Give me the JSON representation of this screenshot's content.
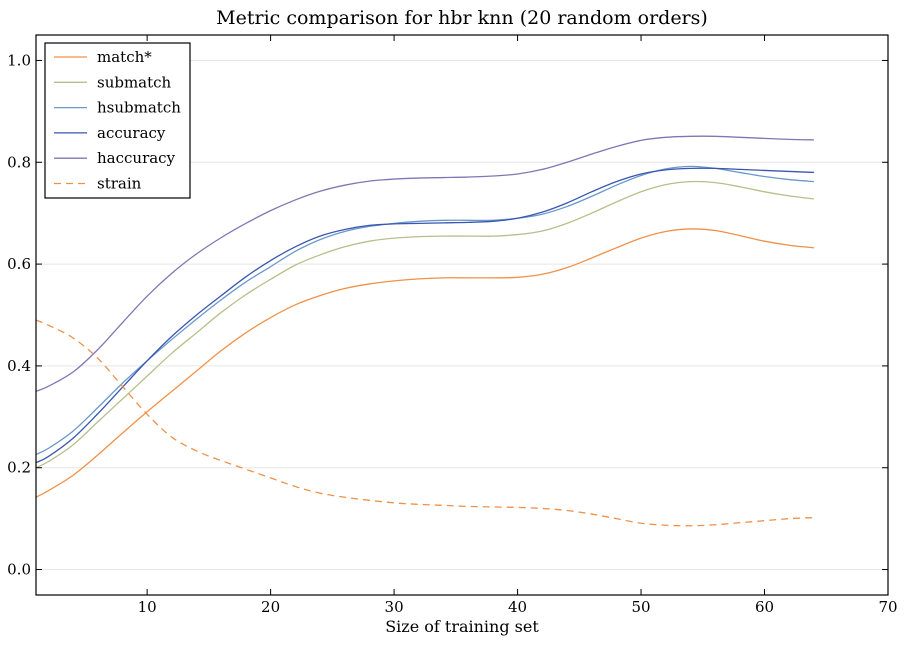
{
  "chart_data": {
    "type": "line",
    "title": "Metric comparison for hbr knn (20 random orders)",
    "xlabel": "Size of training set",
    "ylabel": "",
    "xlim": [
      1,
      70
    ],
    "ylim": [
      -0.05,
      1.05
    ],
    "xticks": [
      10,
      20,
      30,
      40,
      50,
      60,
      70
    ],
    "yticks": [
      0.0,
      0.2,
      0.4,
      0.6,
      0.8,
      1.0
    ],
    "xtick_labels": [
      "10",
      "20",
      "30",
      "40",
      "50",
      "60",
      "70"
    ],
    "ytick_labels": [
      "0.0",
      "0.2",
      "0.4",
      "0.6",
      "0.8",
      "1.0"
    ],
    "grid": true,
    "legend_position": "top-left",
    "x": [
      1,
      2,
      4,
      6,
      8,
      10,
      12,
      14,
      16,
      18,
      20,
      22,
      24,
      26,
      28,
      30,
      32,
      34,
      36,
      38,
      40,
      42,
      44,
      46,
      48,
      50,
      52,
      54,
      56,
      58,
      60,
      62,
      64
    ],
    "series": [
      {
        "name": "match*",
        "color": "#f0914a",
        "dash": "solid",
        "values": [
          0.142,
          0.155,
          0.185,
          0.225,
          0.268,
          0.31,
          0.35,
          0.39,
          0.43,
          0.465,
          0.495,
          0.52,
          0.538,
          0.552,
          0.561,
          0.567,
          0.571,
          0.573,
          0.573,
          0.573,
          0.574,
          0.58,
          0.593,
          0.612,
          0.632,
          0.651,
          0.664,
          0.669,
          0.666,
          0.656,
          0.645,
          0.637,
          0.632
        ]
      },
      {
        "name": "submatch",
        "color": "#b5c08a",
        "dash": "solid",
        "values": [
          0.2,
          0.212,
          0.245,
          0.29,
          0.335,
          0.38,
          0.425,
          0.465,
          0.505,
          0.54,
          0.57,
          0.598,
          0.618,
          0.634,
          0.645,
          0.651,
          0.654,
          0.655,
          0.655,
          0.655,
          0.658,
          0.665,
          0.68,
          0.7,
          0.722,
          0.742,
          0.756,
          0.762,
          0.76,
          0.752,
          0.742,
          0.734,
          0.728
        ]
      },
      {
        "name": "hsubmatch",
        "color": "#6a98c9",
        "dash": "solid",
        "values": [
          0.226,
          0.238,
          0.272,
          0.318,
          0.366,
          0.41,
          0.452,
          0.492,
          0.53,
          0.565,
          0.595,
          0.625,
          0.648,
          0.664,
          0.674,
          0.68,
          0.684,
          0.686,
          0.686,
          0.686,
          0.69,
          0.698,
          0.713,
          0.733,
          0.755,
          0.774,
          0.787,
          0.792,
          0.788,
          0.78,
          0.772,
          0.766,
          0.762
        ]
      },
      {
        "name": "accuracy",
        "color": "#3a56b0",
        "dash": "solid",
        "values": [
          0.21,
          0.222,
          0.258,
          0.306,
          0.358,
          0.41,
          0.458,
          0.5,
          0.538,
          0.575,
          0.607,
          0.634,
          0.655,
          0.668,
          0.676,
          0.679,
          0.68,
          0.681,
          0.682,
          0.684,
          0.69,
          0.702,
          0.72,
          0.742,
          0.762,
          0.777,
          0.785,
          0.788,
          0.788,
          0.786,
          0.784,
          0.782,
          0.78
        ]
      },
      {
        "name": "haccuracy",
        "color": "#7f77b5",
        "dash": "solid",
        "values": [
          0.35,
          0.36,
          0.388,
          0.432,
          0.485,
          0.537,
          0.582,
          0.62,
          0.652,
          0.68,
          0.705,
          0.726,
          0.743,
          0.755,
          0.763,
          0.767,
          0.769,
          0.77,
          0.771,
          0.773,
          0.777,
          0.786,
          0.8,
          0.816,
          0.831,
          0.843,
          0.849,
          0.851,
          0.851,
          0.849,
          0.847,
          0.845,
          0.844
        ]
      },
      {
        "name": "strain",
        "color": "#f0914a",
        "dash": "dashed",
        "values": [
          0.49,
          0.48,
          0.455,
          0.415,
          0.36,
          0.305,
          0.26,
          0.233,
          0.214,
          0.197,
          0.18,
          0.163,
          0.15,
          0.142,
          0.136,
          0.131,
          0.128,
          0.126,
          0.124,
          0.123,
          0.122,
          0.12,
          0.116,
          0.109,
          0.1,
          0.091,
          0.087,
          0.086,
          0.088,
          0.092,
          0.096,
          0.1,
          0.102
        ]
      }
    ]
  }
}
